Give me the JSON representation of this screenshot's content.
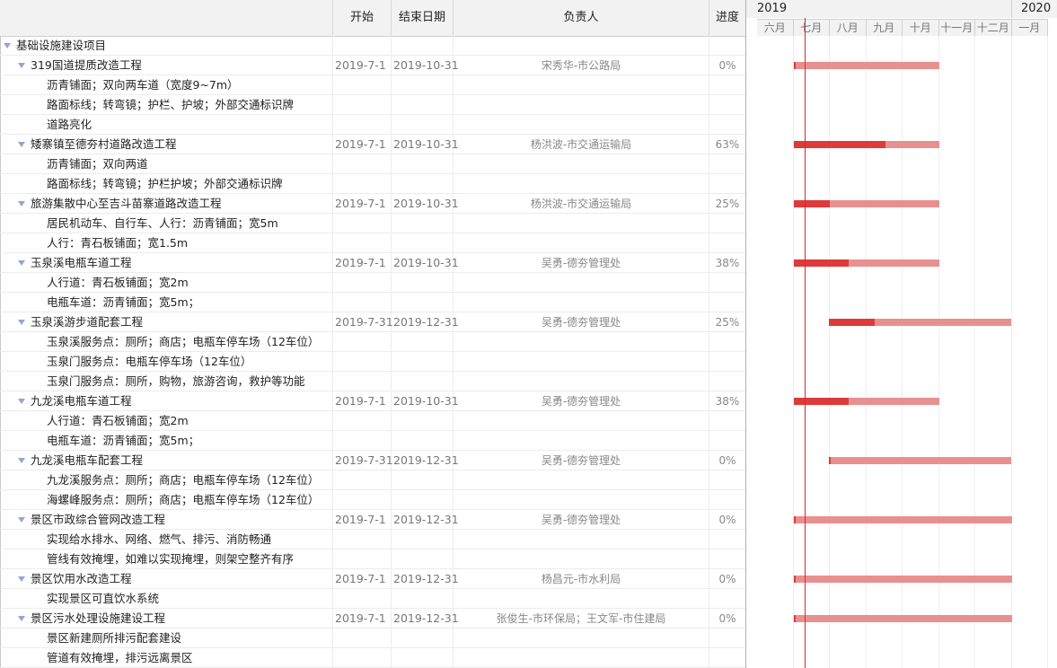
{
  "columns": {
    "name": "",
    "start": "开始",
    "end": "结束日期",
    "owner": "负责人",
    "progress": "进度"
  },
  "timeline": {
    "years": [
      "2019",
      "2020"
    ],
    "months": [
      "六月",
      "七月",
      "八月",
      "九月",
      "十月",
      "十一月",
      "十二月",
      "一月"
    ],
    "today_marker": "七月"
  },
  "colors": {
    "bar_bg": "#e89090",
    "bar_progress": "#dd3a3a",
    "today_line": "#d42a2a",
    "expander": "#8fa8d0"
  },
  "rows": [
    {
      "level": 0,
      "expand": true,
      "name": "基础设施建设项目",
      "start": "",
      "end": "",
      "owner": "",
      "progress": ""
    },
    {
      "level": 1,
      "expand": true,
      "name": "319国道提质改造工程",
      "start": "2019-7-1",
      "end": "2019-10-31",
      "owner": "宋秀华-市公路局",
      "progress": "0%",
      "pct": 0
    },
    {
      "level": 2,
      "name": "沥青铺面；双向两车道（宽度9~7m）"
    },
    {
      "level": 2,
      "name": "路面标线；转弯镜；护栏、护坡；外部交通标识牌"
    },
    {
      "level": 2,
      "name": "道路亮化"
    },
    {
      "level": 1,
      "expand": true,
      "name": "矮寨镇至德夯村道路改造工程",
      "start": "2019-7-1",
      "end": "2019-10-31",
      "owner": "杨洪波-市交通运输局",
      "progress": "63%",
      "pct": 63
    },
    {
      "level": 2,
      "name": "沥青铺面；双向两道"
    },
    {
      "level": 2,
      "name": "路面标线；转弯镜；护栏护坡；外部交通标识牌"
    },
    {
      "level": 1,
      "expand": true,
      "name": "旅游集散中心至吉斗苗寨道路改造工程",
      "start": "2019-7-1",
      "end": "2019-10-31",
      "owner": "杨洪波-市交通运输局",
      "progress": "25%",
      "pct": 25
    },
    {
      "level": 2,
      "name": "居民机动车、自行车、人行：沥青铺面；宽5m"
    },
    {
      "level": 2,
      "name": "人行：青石板铺面；宽1.5m"
    },
    {
      "level": 1,
      "expand": true,
      "name": "玉泉溪电瓶车道工程",
      "start": "2019-7-1",
      "end": "2019-10-31",
      "owner": "吴勇-德夯管理处",
      "progress": "38%",
      "pct": 38
    },
    {
      "level": 2,
      "name": "人行道：青石板铺面；宽2m"
    },
    {
      "level": 2,
      "name": "电瓶车道：沥青铺面；宽5m；"
    },
    {
      "level": 1,
      "expand": true,
      "name": "玉泉溪游步道配套工程",
      "start": "2019-7-31",
      "end": "2019-12-31",
      "owner": "吴勇-德夯管理处",
      "progress": "25%",
      "pct": 25
    },
    {
      "level": 2,
      "name": "玉泉溪服务点：厕所；商店；电瓶车停车场（12车位）"
    },
    {
      "level": 2,
      "name": "玉泉门服务点：电瓶车停车场（12车位）"
    },
    {
      "level": 2,
      "name": "玉泉门服务点：厕所，购物，旅游咨询，救护等功能"
    },
    {
      "level": 1,
      "expand": true,
      "name": "九龙溪电瓶车道工程",
      "start": "2019-7-1",
      "end": "2019-10-31",
      "owner": "吴勇-德夯管理处",
      "progress": "38%",
      "pct": 38
    },
    {
      "level": 2,
      "name": "人行道：青石板铺面；宽2m"
    },
    {
      "level": 2,
      "name": "电瓶车道：沥青铺面；宽5m；"
    },
    {
      "level": 1,
      "expand": true,
      "name": "九龙溪电瓶车配套工程",
      "start": "2019-7-31",
      "end": "2019-12-31",
      "owner": "吴勇-德夯管理处",
      "progress": "0%",
      "pct": 0
    },
    {
      "level": 2,
      "name": "九龙溪服务点：厕所；商店；电瓶车停车场（12车位）"
    },
    {
      "level": 2,
      "name": "海螺峰服务点：厕所；商店；电瓶车停车场（12车位）"
    },
    {
      "level": 1,
      "expand": true,
      "name": "景区市政综合管网改造工程",
      "start": "2019-7-1",
      "end": "2019-12-31",
      "owner": "吴勇-德夯管理处",
      "progress": "0%",
      "pct": 0
    },
    {
      "level": 2,
      "name": "实现给水排水、网络、燃气、排污、消防畅通"
    },
    {
      "level": 2,
      "name": "管线有效掩埋，如难以实现掩埋，则架空整齐有序"
    },
    {
      "level": 1,
      "expand": true,
      "name": "景区饮用水改造工程",
      "start": "2019-7-1",
      "end": "2019-12-31",
      "owner": "杨昌元-市水利局",
      "progress": "0%",
      "pct": 0
    },
    {
      "level": 2,
      "name": "实现景区可直饮水系统"
    },
    {
      "level": 1,
      "expand": true,
      "name": "景区污水处理设施建设工程",
      "start": "2019-7-1",
      "end": "2019-12-31",
      "owner": "张俊生-市环保局；王文军-市住建局",
      "progress": "0%",
      "pct": 0
    },
    {
      "level": 2,
      "name": "景区新建厕所排污配套建设"
    },
    {
      "level": 2,
      "name": "管道有效掩埋，排污远离景区"
    }
  ]
}
